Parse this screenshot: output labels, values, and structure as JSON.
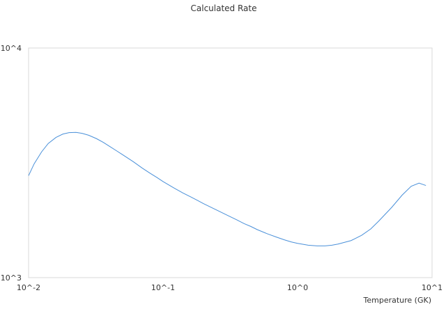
{
  "chart_data": {
    "type": "line",
    "title": "Calculated Rate",
    "xlabel": "Temperature (GK)",
    "ylabel": "",
    "x_scale": "log",
    "y_scale": "log",
    "xlim": [
      0.01,
      10
    ],
    "ylim": [
      1000,
      10000
    ],
    "x_ticks": [
      {
        "value": 0.01,
        "label": "10^-2"
      },
      {
        "value": 0.1,
        "label": "10^-1"
      },
      {
        "value": 1,
        "label": "10^0"
      },
      {
        "value": 10,
        "label": "10^1"
      }
    ],
    "y_ticks": [
      {
        "value": 1000,
        "label": "10^3"
      },
      {
        "value": 10000,
        "label": "10^4"
      }
    ],
    "grid": false,
    "legend": "none",
    "series": [
      {
        "color": "#4a90d9",
        "x": [
          0.01,
          0.011,
          0.0125,
          0.014,
          0.016,
          0.018,
          0.02,
          0.0225,
          0.025,
          0.028,
          0.032,
          0.036,
          0.04,
          0.045,
          0.05,
          0.06,
          0.07,
          0.08,
          0.09,
          0.1,
          0.12,
          0.14,
          0.16,
          0.18,
          0.2,
          0.25,
          0.3,
          0.35,
          0.4,
          0.45,
          0.5,
          0.6,
          0.7,
          0.8,
          0.9,
          1.0,
          1.2,
          1.4,
          1.6,
          1.8,
          2.0,
          2.5,
          3.0,
          3.5,
          4.0,
          5.0,
          6.0,
          7.0,
          8.0,
          9.0
        ],
        "y": [
          2780,
          3130,
          3530,
          3840,
          4080,
          4220,
          4280,
          4290,
          4250,
          4170,
          4030,
          3880,
          3730,
          3570,
          3430,
          3200,
          3000,
          2850,
          2730,
          2620,
          2460,
          2340,
          2250,
          2170,
          2100,
          1970,
          1870,
          1790,
          1720,
          1670,
          1620,
          1550,
          1500,
          1460,
          1430,
          1410,
          1385,
          1375,
          1375,
          1385,
          1400,
          1450,
          1530,
          1630,
          1760,
          2020,
          2290,
          2500,
          2580,
          2520
        ]
      }
    ]
  }
}
